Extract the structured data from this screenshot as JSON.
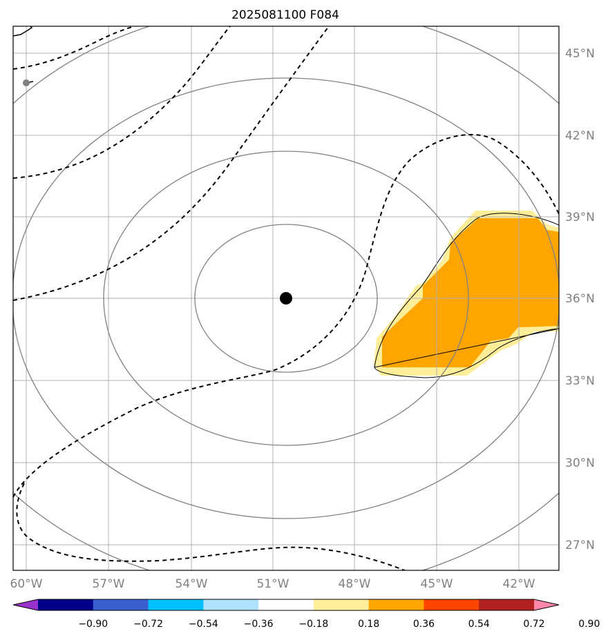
{
  "chart_data": {
    "type": "map",
    "title": "2025081100 F084",
    "projection": "lambert-like (curved graticule)",
    "extent": {
      "lon": [
        -61,
        -40.5
      ],
      "lat": [
        26,
        46
      ]
    },
    "lon_ticks": [
      {
        "value": -60,
        "label": "60°W"
      },
      {
        "value": -57,
        "label": "57°W"
      },
      {
        "value": -54,
        "label": "54°W"
      },
      {
        "value": -51,
        "label": "51°W"
      },
      {
        "value": -48,
        "label": "48°W"
      },
      {
        "value": -45,
        "label": "45°W"
      },
      {
        "value": -42,
        "label": "42°W"
      }
    ],
    "lat_ticks": [
      {
        "value": 45,
        "label": "45°N"
      },
      {
        "value": 42,
        "label": "42°N"
      },
      {
        "value": 39,
        "label": "39°N"
      },
      {
        "value": 36,
        "label": "36°N"
      },
      {
        "value": 33,
        "label": "33°N"
      },
      {
        "value": 30,
        "label": "30°N"
      },
      {
        "value": 27,
        "label": "27°N"
      }
    ],
    "grid": true,
    "center_marker": {
      "lon": -50.5,
      "lat": 36
    },
    "range_rings": 4,
    "colorbar": {
      "orientation": "horizontal",
      "placement": "bottom",
      "extend": "both",
      "levels": [
        "−0.90",
        "−0.72",
        "−0.54",
        "−0.36",
        "−0.18",
        "0.18",
        "0.36",
        "0.54",
        "0.72",
        "0.90"
      ],
      "colors": [
        "#9932cc",
        "#00008b",
        "#3a5fcd",
        "#00bfff",
        "#b0e2ff",
        "#ffffff",
        "#ffee99",
        "#ffa500",
        "#ff4500",
        "#b22222",
        "#ff88aa"
      ]
    },
    "filled_region": {
      "description": "positive anomaly patch east of center",
      "inner_color": "#ffa500",
      "edge_color": "#ffee99",
      "lon_range": [
        -47.5,
        -40.5
      ],
      "lat_range": [
        33.5,
        39.3
      ]
    },
    "colors": {
      "ring": "#808080",
      "grid": "#b0b0b0",
      "contour": "#000000"
    }
  }
}
